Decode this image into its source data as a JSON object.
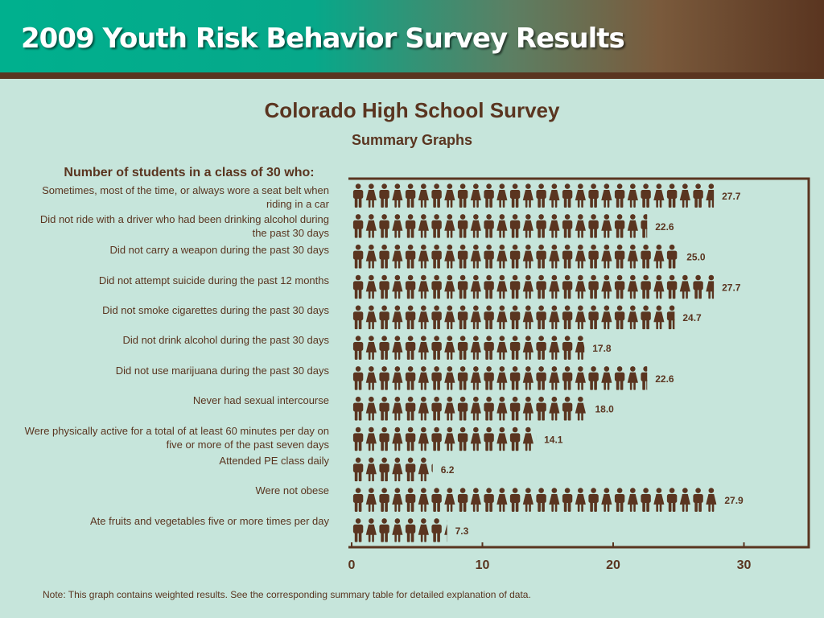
{
  "header": {
    "banner_title": "2009 Youth Risk Behavior Survey Results",
    "title": "Colorado High School Survey",
    "subtitle": "Summary Graphs",
    "question": "Number of students in a class of 30 who:"
  },
  "note": "Note: This graph contains weighted results. See the corresponding summary table for detailed explanation of data.",
  "colors": {
    "background": "#c6e5db",
    "brown": "#5a3520",
    "banner_teal": "#00b08e"
  },
  "chart_data": {
    "type": "bar",
    "orientation": "horizontal",
    "mark": "pictograph-person-icons",
    "categories": [
      "Sometimes, most of the time, or always wore a seat belt when riding in a car",
      "Did not ride with a driver who had been drinking alcohol during the past 30 days",
      "Did not carry a weapon during the past 30 days",
      "Did not attempt suicide during the past 12 months",
      "Did not smoke cigarettes during the past 30 days",
      "Did not drink alcohol during the past 30 days",
      "Did not use marijuana during the past 30 days",
      "Never had sexual intercourse",
      "Were physically active for a total of at least 60 minutes per day on five or more of the past seven days",
      "Attended PE class daily",
      "Were not obese",
      "Ate fruits and vegetables five or more times per day"
    ],
    "values": [
      27.7,
      22.6,
      25.0,
      27.7,
      24.7,
      17.8,
      22.6,
      18.0,
      14.1,
      6.2,
      27.9,
      7.3
    ],
    "value_labels": [
      "27.7",
      "22.6",
      "25.0",
      "27.7",
      "24.7",
      "17.8",
      "22.6",
      "18.0",
      "14.1",
      "6.2",
      "27.9",
      "7.3"
    ],
    "xlim": [
      0,
      35
    ],
    "xticks": [
      0,
      10,
      20,
      30
    ],
    "xtick_labels": [
      "0",
      "10",
      "20",
      "30"
    ],
    "xlabel": "",
    "ylabel": "",
    "grid": false
  }
}
